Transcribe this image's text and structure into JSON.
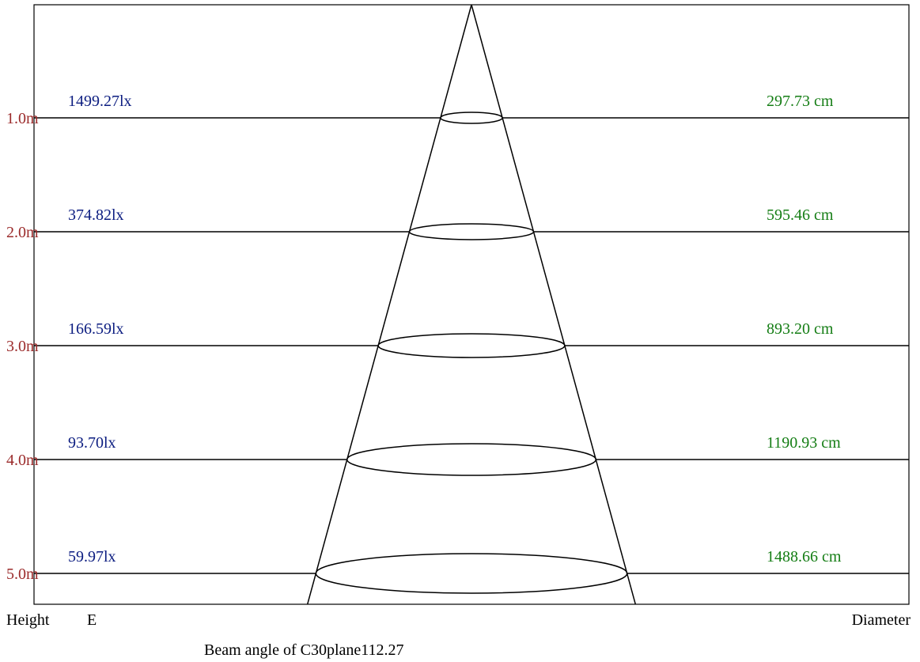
{
  "diagram": {
    "beam_angle_text": "Beam angle of C30plane112.27",
    "height_header": "Height",
    "illuminance_header": "E",
    "diameter_header": "Diameter",
    "colors": {
      "height": "#9b2b2b",
      "illuminance": "#0b1c80",
      "diameter": "#147d14",
      "lines": "#000000"
    },
    "levels": [
      {
        "height": "1.0m",
        "illuminance": "1499.27lx",
        "diameter": "297.73 cm"
      },
      {
        "height": "2.0m",
        "illuminance": "374.82lx",
        "diameter": "595.46 cm"
      },
      {
        "height": "3.0m",
        "illuminance": "166.59lx",
        "diameter": "893.20 cm"
      },
      {
        "height": "4.0m",
        "illuminance": "93.70lx",
        "diameter": "1190.93 cm"
      },
      {
        "height": "5.0m",
        "illuminance": "59.97lx",
        "diameter": "1488.66 cm"
      }
    ]
  }
}
